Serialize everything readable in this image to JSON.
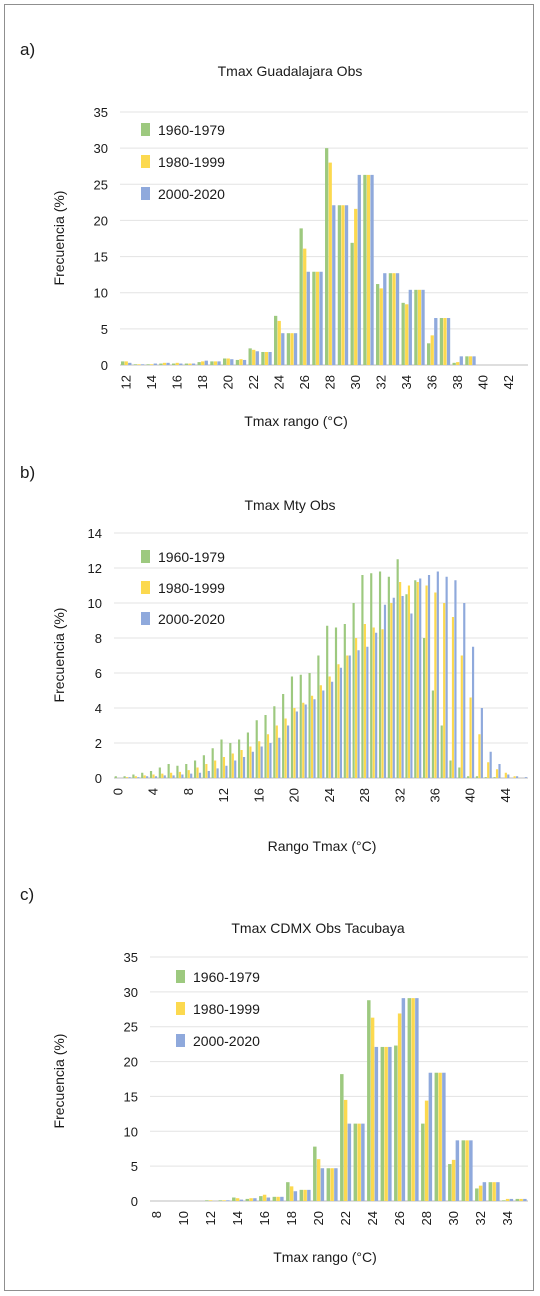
{
  "chart_data": [
    {
      "type": "bar",
      "panel_label": "a)",
      "title": "Tmax  Guadalajara Obs",
      "xlabel": "Tmax rango (°C)",
      "ylabel": "Frecuencia (%)",
      "ylim": [
        0,
        35
      ],
      "yticks": [
        0,
        5,
        10,
        15,
        20,
        25,
        30,
        35
      ],
      "xtick_labels": [
        "12",
        "14",
        "16",
        "18",
        "20",
        "22",
        "24",
        "26",
        "28",
        "30",
        "32",
        "34",
        "36",
        "38",
        "40",
        "42"
      ],
      "grid": true,
      "legend_position": "top-left",
      "categories": [
        "12",
        "13",
        "14",
        "15",
        "16",
        "17",
        "18",
        "19",
        "20",
        "21",
        "22",
        "23",
        "24",
        "25",
        "26",
        "27",
        "28",
        "29",
        "30",
        "31",
        "32",
        "33",
        "34",
        "35",
        "36",
        "37",
        "38",
        "39",
        "40",
        "41",
        "42",
        "43"
      ],
      "series": [
        {
          "name": "1960-1979",
          "color": "#9dc97f",
          "values": [
            0.5,
            0.1,
            0.1,
            0.2,
            0.2,
            0.2,
            0.4,
            0.5,
            0.9,
            0.7,
            2.3,
            1.8,
            6.8,
            4.4,
            18.9,
            12.9,
            30.0,
            22.1,
            16.9,
            26.3,
            11.2,
            12.7,
            8.6,
            10.4,
            3.0,
            6.5,
            0.3,
            1.2,
            0,
            0,
            0,
            0
          ]
        },
        {
          "name": "1980-1999",
          "color": "#fcd94f",
          "values": [
            0.5,
            0.1,
            0.1,
            0.3,
            0.3,
            0.2,
            0.5,
            0.5,
            0.9,
            0.8,
            2.1,
            1.8,
            6.1,
            4.4,
            16.1,
            12.9,
            28.0,
            22.1,
            21.6,
            26.3,
            10.6,
            12.7,
            8.4,
            10.4,
            4.1,
            6.5,
            0.4,
            1.2,
            0,
            0,
            0,
            0
          ]
        },
        {
          "name": "2000-2020",
          "color": "#8fa9dc",
          "values": [
            0.3,
            0.1,
            0.2,
            0.3,
            0.2,
            0.2,
            0.6,
            0.5,
            0.8,
            0.7,
            1.9,
            1.8,
            4.4,
            4.4,
            12.9,
            12.9,
            22.1,
            22.1,
            26.3,
            26.3,
            12.7,
            12.7,
            10.4,
            10.4,
            6.5,
            6.5,
            1.2,
            1.2,
            0,
            0,
            0,
            0
          ]
        }
      ]
    },
    {
      "type": "bar",
      "panel_label": "b)",
      "title": "Tmax Mty Obs",
      "xlabel": "Rango Tmax (°C)",
      "ylabel": "Frecuencia (%)",
      "ylim": [
        0,
        14
      ],
      "yticks": [
        0,
        2,
        4,
        6,
        8,
        10,
        12,
        14
      ],
      "xtick_labels": [
        "0",
        "4",
        "8",
        "12",
        "16",
        "20",
        "24",
        "28",
        "32",
        "36",
        "40",
        "44"
      ],
      "grid": true,
      "legend_position": "top-left",
      "categories": [
        "0",
        "1",
        "2",
        "3",
        "4",
        "5",
        "6",
        "7",
        "8",
        "9",
        "10",
        "11",
        "12",
        "13",
        "14",
        "15",
        "16",
        "17",
        "18",
        "19",
        "20",
        "21",
        "22",
        "23",
        "24",
        "25",
        "26",
        "27",
        "28",
        "29",
        "30",
        "31",
        "32",
        "33",
        "34",
        "35",
        "36",
        "37",
        "38",
        "39",
        "40",
        "41",
        "42",
        "43",
        "44",
        "45",
        "46"
      ],
      "series": [
        {
          "name": "1960-1979",
          "color": "#9dc97f",
          "values": [
            0.1,
            0.1,
            0.2,
            0.3,
            0.4,
            0.6,
            0.8,
            0.7,
            0.8,
            1.0,
            1.3,
            1.7,
            2.2,
            2.0,
            2.2,
            2.6,
            3.3,
            3.6,
            4.1,
            4.8,
            5.8,
            5.9,
            6.0,
            7.0,
            8.7,
            8.6,
            8.8,
            10.0,
            11.6,
            11.7,
            11.8,
            11.5,
            12.5,
            10.5,
            11.3,
            8.0,
            5.0,
            3.0,
            1.0,
            0.6,
            0.1,
            0.1,
            0.05,
            0.05,
            0,
            0,
            0
          ]
        },
        {
          "name": "1980-1999",
          "color": "#fcd94f",
          "values": [
            0,
            0.05,
            0.1,
            0.15,
            0.2,
            0.25,
            0.3,
            0.35,
            0.45,
            0.6,
            0.8,
            1.0,
            1.2,
            1.4,
            1.6,
            1.8,
            2.1,
            2.5,
            3.0,
            3.4,
            4.0,
            4.3,
            4.7,
            5.3,
            5.8,
            6.5,
            7.0,
            8.0,
            8.8,
            8.6,
            8.5,
            10.0,
            11.2,
            11.0,
            11.2,
            11.0,
            10.6,
            10.0,
            9.2,
            7.0,
            4.6,
            2.5,
            0.9,
            0.5,
            0.3,
            0.1,
            0
          ]
        },
        {
          "name": "2000-2020",
          "color": "#8fa9dc",
          "values": [
            0,
            0.05,
            0.05,
            0.1,
            0.1,
            0.15,
            0.15,
            0.2,
            0.25,
            0.3,
            0.4,
            0.55,
            0.7,
            1.0,
            1.2,
            1.5,
            1.8,
            2.0,
            2.3,
            3.0,
            3.8,
            4.2,
            4.5,
            5.0,
            5.5,
            6.3,
            7.0,
            7.3,
            7.5,
            8.3,
            9.9,
            10.3,
            10.4,
            9.4,
            11.4,
            11.6,
            11.8,
            11.5,
            11.3,
            10.0,
            7.5,
            4.0,
            1.5,
            0.8,
            0.2,
            0.1,
            0.05
          ]
        }
      ]
    },
    {
      "type": "bar",
      "panel_label": "c)",
      "title": "Tmax CDMX Obs Tacubaya",
      "xlabel": "Tmax rango (°C)",
      "ylabel": "Frecuencia (%)",
      "ylim": [
        0,
        35
      ],
      "yticks": [
        0,
        5,
        10,
        15,
        20,
        25,
        30,
        35
      ],
      "xtick_labels": [
        "8",
        "10",
        "12",
        "14",
        "16",
        "18",
        "20",
        "22",
        "24",
        "26",
        "28",
        "30",
        "32",
        "34"
      ],
      "grid": true,
      "legend_position": "top-left",
      "categories": [
        "8",
        "9",
        "10",
        "11",
        "12",
        "13",
        "14",
        "15",
        "16",
        "17",
        "18",
        "19",
        "20",
        "21",
        "22",
        "23",
        "24",
        "25",
        "26",
        "27",
        "28",
        "29",
        "30",
        "31",
        "32",
        "33",
        "34",
        "35"
      ],
      "series": [
        {
          "name": "1960-1979",
          "color": "#9dc97f",
          "values": [
            0,
            0,
            0,
            0,
            0.1,
            0.1,
            0.5,
            0.3,
            0.7,
            0.6,
            2.7,
            1.6,
            7.8,
            4.7,
            18.2,
            11.1,
            28.8,
            22.1,
            22.3,
            29.1,
            11.1,
            18.4,
            5.3,
            8.7,
            1.8,
            2.7,
            0.1,
            0.3
          ]
        },
        {
          "name": "1980-1999",
          "color": "#fcd94f",
          "values": [
            0,
            0,
            0,
            0,
            0.1,
            0.1,
            0.4,
            0.4,
            0.9,
            0.6,
            2.1,
            1.6,
            6.0,
            4.7,
            14.5,
            11.1,
            26.3,
            22.1,
            26.9,
            29.1,
            14.4,
            18.4,
            5.9,
            8.7,
            2.2,
            2.7,
            0.3,
            0.3
          ]
        },
        {
          "name": "2000-2020",
          "color": "#8fa9dc",
          "values": [
            0,
            0,
            0,
            0,
            0,
            0.1,
            0.2,
            0.4,
            0.5,
            0.6,
            1.4,
            1.6,
            4.7,
            4.7,
            11.1,
            11.1,
            22.1,
            22.1,
            29.1,
            29.1,
            18.4,
            18.4,
            8.7,
            8.7,
            2.7,
            2.7,
            0.3,
            0.3
          ]
        }
      ]
    }
  ]
}
